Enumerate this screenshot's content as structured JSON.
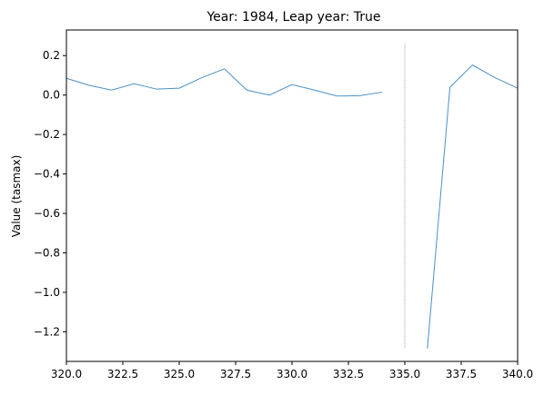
{
  "chart_data": {
    "type": "line",
    "title": "Year: 1984, Leap year: True",
    "xlabel": "",
    "ylabel": "Value (tasmax)",
    "xlim": [
      320.0,
      340.0
    ],
    "ylim": [
      -1.35,
      0.33
    ],
    "grid": false,
    "x_ticks": [
      320.0,
      322.5,
      325.0,
      327.5,
      330.0,
      332.5,
      335.0,
      337.5,
      340.0
    ],
    "x_tick_labels": [
      "320.0",
      "322.5",
      "325.0",
      "327.5",
      "330.0",
      "332.5",
      "335.0",
      "337.5",
      "340.0"
    ],
    "y_ticks": [
      0.2,
      0.0,
      -0.2,
      -0.4,
      -0.6,
      -0.8,
      -1.0,
      -1.2
    ],
    "y_tick_labels": [
      "0.2",
      "0.0",
      "−0.2",
      "−0.4",
      "−0.6",
      "−0.8",
      "−1.0",
      "−1.2"
    ],
    "series": [
      {
        "color": "#4a90c8",
        "segments": [
          {
            "x": [
              320,
              321,
              322,
              323,
              324,
              325,
              326,
              327,
              328,
              329,
              330,
              331,
              332,
              333,
              334
            ],
            "y": [
              0.085,
              0.05,
              0.025,
              0.058,
              0.03,
              0.035,
              0.088,
              0.133,
              0.025,
              0.0,
              0.053,
              0.025,
              -0.005,
              -0.003,
              0.015
            ]
          },
          {
            "x": [
              336,
              337,
              338,
              339,
              340
            ],
            "y": [
              -1.285,
              0.04,
              0.152,
              0.088,
              0.035
            ]
          }
        ]
      }
    ],
    "annotations": [
      {
        "type": "vline",
        "x": 335.0,
        "y_range": [
          -1.285,
          0.26
        ],
        "color": "#888888",
        "style": "dotted"
      }
    ]
  }
}
